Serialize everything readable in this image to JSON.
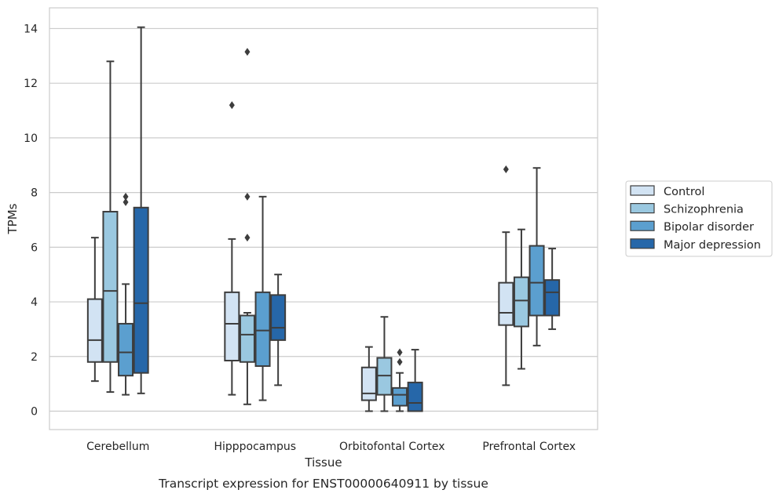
{
  "chart_data": {
    "type": "boxplot",
    "caption": "Transcript expression for ENST00000640911 by tissue",
    "xlabel": "Tissue",
    "ylabel": "TPMs",
    "ylim": [
      -0.7,
      14.8
    ],
    "yticks": [
      0,
      2,
      4,
      6,
      8,
      10,
      12,
      14
    ],
    "grid": "horizontal",
    "legend_position": "right",
    "categories": [
      "Cerebellum",
      "Hipppocampus",
      "Orbitofontal Cortex",
      "Prefrontal Cortex"
    ],
    "series": [
      {
        "name": "Control",
        "color": "#d2e3f3",
        "boxes": [
          {
            "whisker_low": 1.1,
            "q1": 1.8,
            "median": 2.6,
            "q3": 4.1,
            "whisker_high": 6.35,
            "outliers": []
          },
          {
            "whisker_low": 0.6,
            "q1": 1.85,
            "median": 3.2,
            "q3": 4.35,
            "whisker_high": 6.3,
            "outliers": [
              11.2
            ]
          },
          {
            "whisker_low": 0.0,
            "q1": 0.4,
            "median": 0.65,
            "q3": 1.6,
            "whisker_high": 2.35,
            "outliers": []
          },
          {
            "whisker_low": 0.95,
            "q1": 3.15,
            "median": 3.6,
            "q3": 4.7,
            "whisker_high": 6.55,
            "outliers": [
              8.85
            ]
          }
        ]
      },
      {
        "name": "Schizophrenia",
        "color": "#9ac8e0",
        "boxes": [
          {
            "whisker_low": 0.7,
            "q1": 1.8,
            "median": 4.4,
            "q3": 7.3,
            "whisker_high": 12.8,
            "outliers": []
          },
          {
            "whisker_low": 0.25,
            "q1": 1.8,
            "median": 2.8,
            "q3": 3.5,
            "whisker_high": 3.6,
            "outliers": [
              6.35,
              7.85,
              13.15
            ]
          },
          {
            "whisker_low": 0.0,
            "q1": 0.6,
            "median": 1.3,
            "q3": 1.95,
            "whisker_high": 3.45,
            "outliers": []
          },
          {
            "whisker_low": 1.55,
            "q1": 3.1,
            "median": 4.05,
            "q3": 4.9,
            "whisker_high": 6.65,
            "outliers": []
          }
        ]
      },
      {
        "name": "Bipolar disorder",
        "color": "#5b9fcf",
        "boxes": [
          {
            "whisker_low": 0.6,
            "q1": 1.3,
            "median": 2.15,
            "q3": 3.2,
            "whisker_high": 4.65,
            "outliers": [
              7.65,
              7.85
            ]
          },
          {
            "whisker_low": 0.4,
            "q1": 1.65,
            "median": 2.95,
            "q3": 4.35,
            "whisker_high": 7.85,
            "outliers": []
          },
          {
            "whisker_low": 0.0,
            "q1": 0.2,
            "median": 0.6,
            "q3": 0.85,
            "whisker_high": 1.4,
            "outliers": [
              1.8,
              2.15
            ]
          },
          {
            "whisker_low": 2.4,
            "q1": 3.5,
            "median": 4.7,
            "q3": 6.05,
            "whisker_high": 8.9,
            "outliers": []
          }
        ]
      },
      {
        "name": "Major depression",
        "color": "#2667a9",
        "boxes": [
          {
            "whisker_low": 0.65,
            "q1": 1.4,
            "median": 3.95,
            "q3": 7.45,
            "whisker_high": 14.05,
            "outliers": []
          },
          {
            "whisker_low": 0.95,
            "q1": 2.6,
            "median": 3.05,
            "q3": 4.25,
            "whisker_high": 5.0,
            "outliers": []
          },
          {
            "whisker_low": 0.0,
            "q1": 0.0,
            "median": 0.3,
            "q3": 1.05,
            "whisker_high": 2.25,
            "outliers": []
          },
          {
            "whisker_low": 3.0,
            "q1": 3.5,
            "median": 4.35,
            "q3": 4.8,
            "whisker_high": 5.95,
            "outliers": []
          }
        ]
      }
    ]
  }
}
